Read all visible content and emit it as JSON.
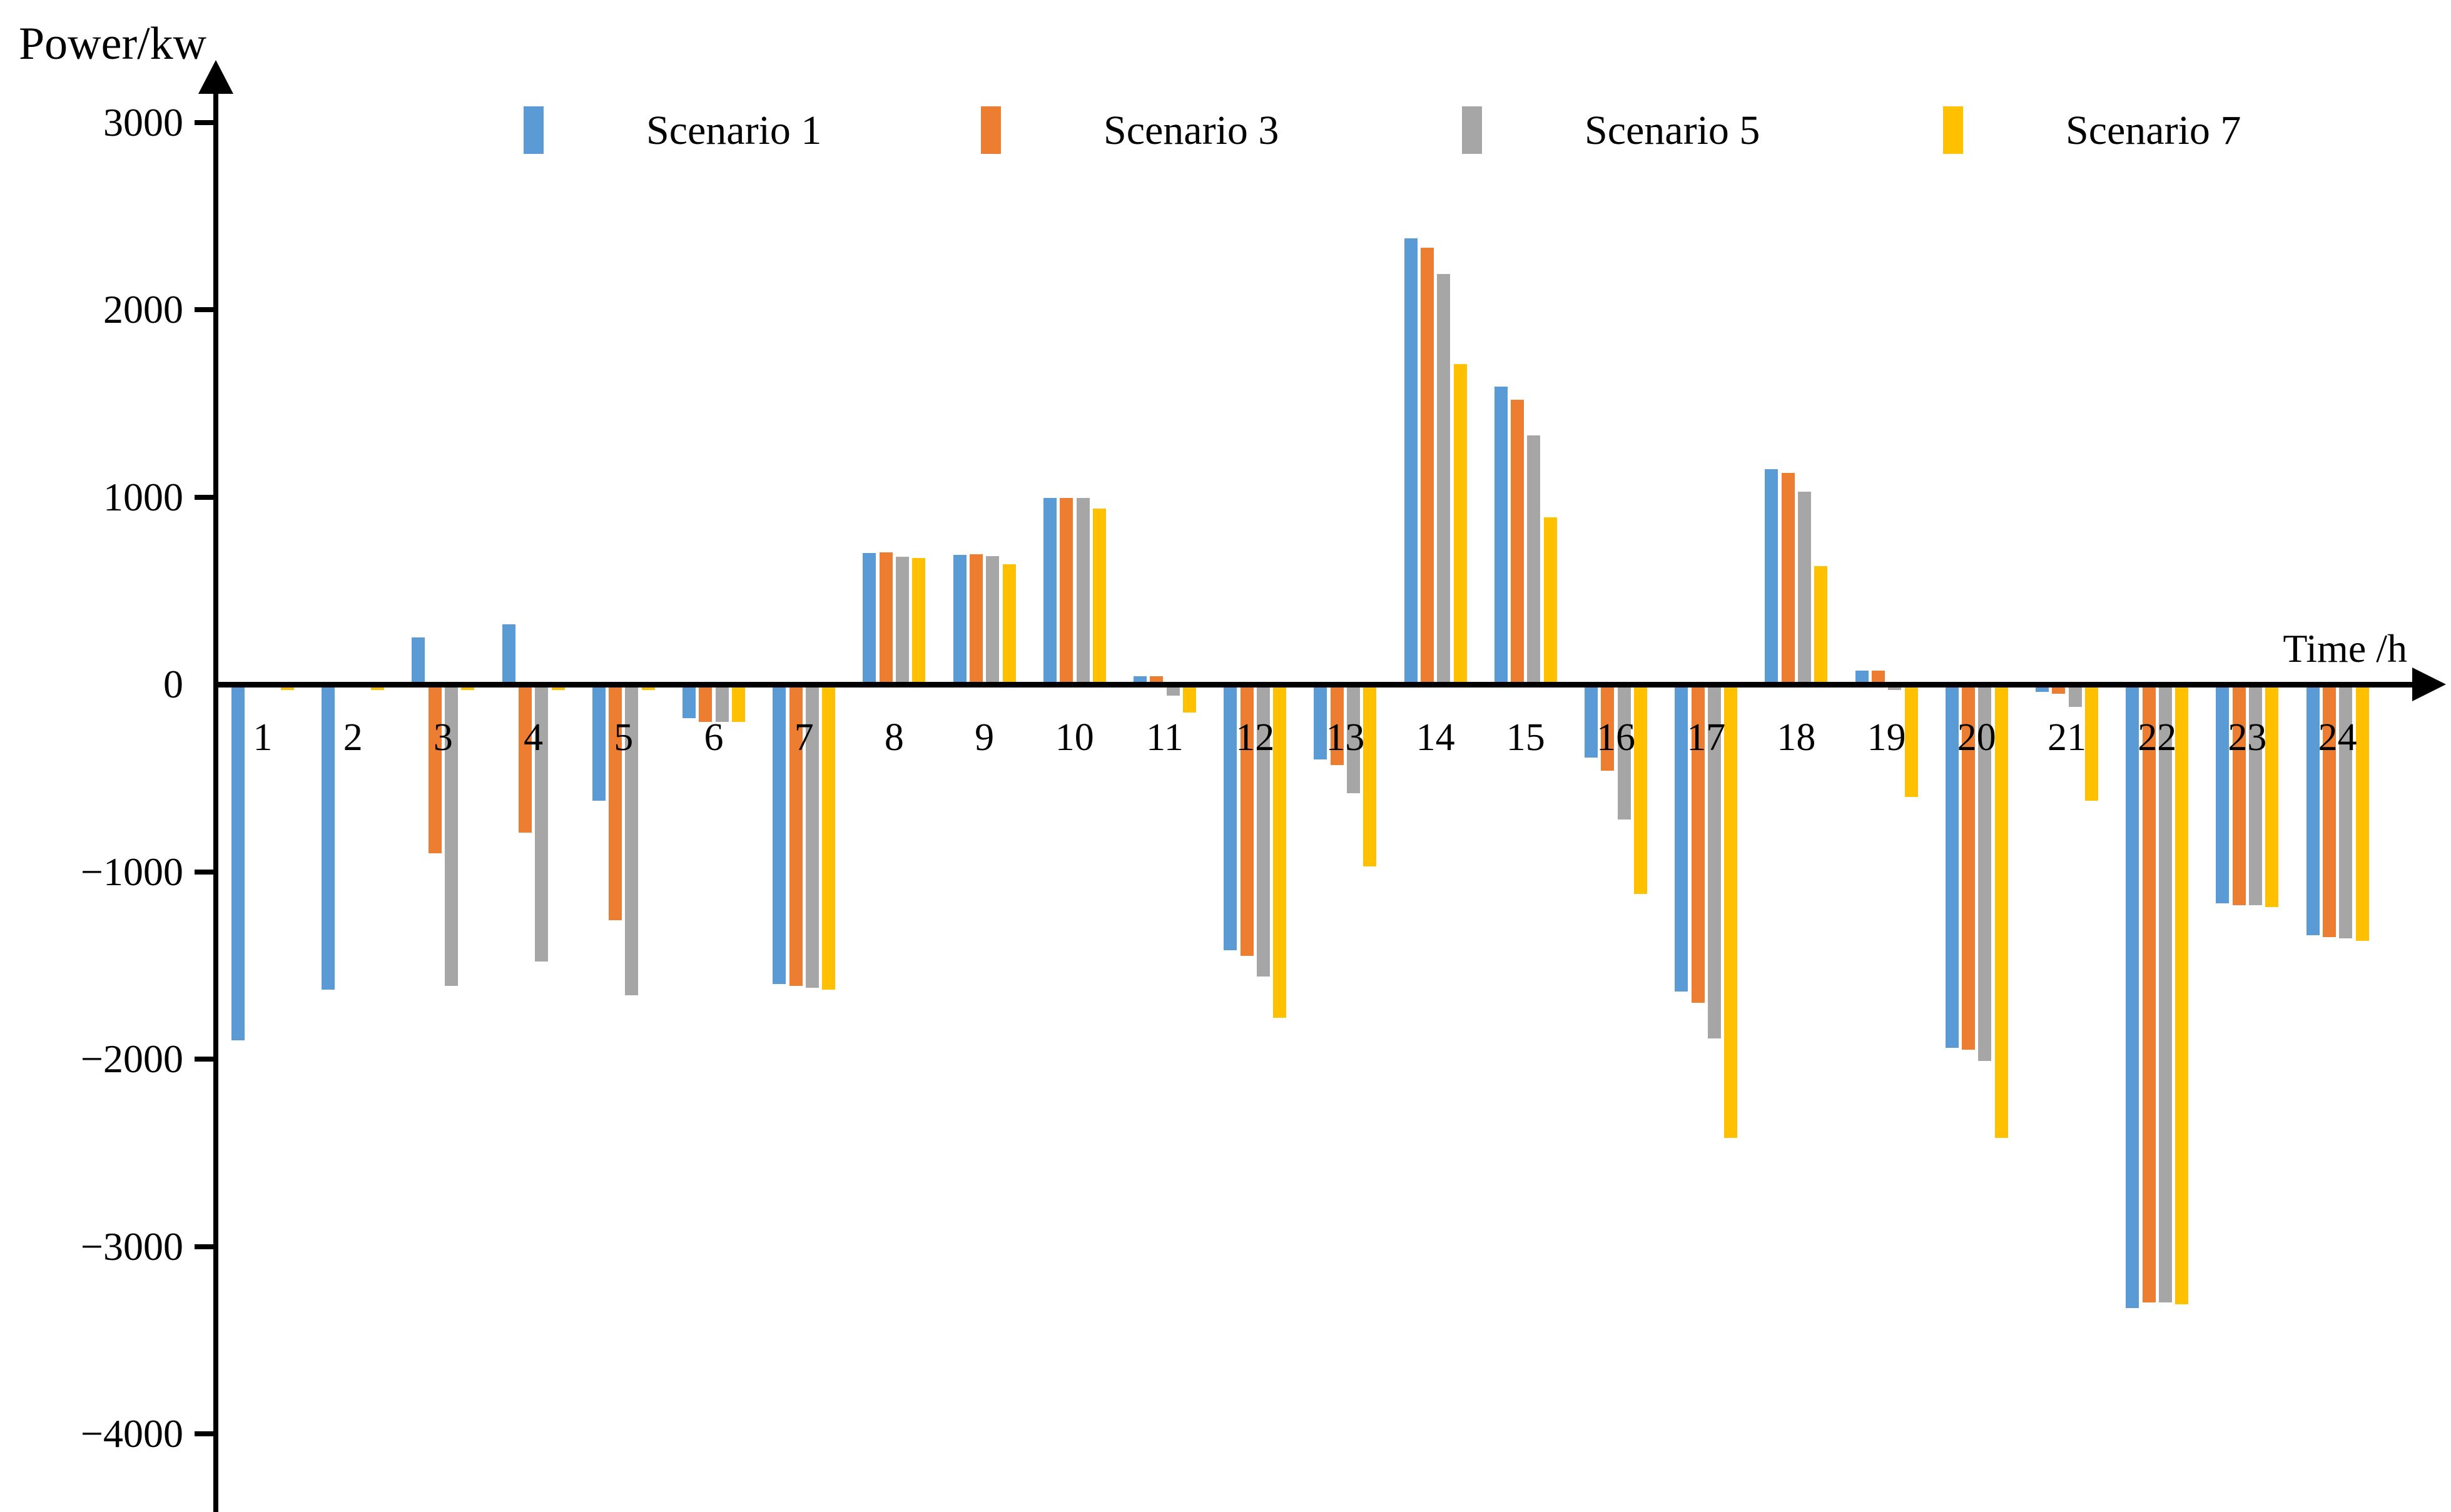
{
  "chart": {
    "y_axis_title": "Power/kw",
    "x_axis_title": "Time /h",
    "y_ticks": [
      {
        "value": 3000,
        "label": "3000"
      },
      {
        "value": 2000,
        "label": "2000"
      },
      {
        "value": 1000,
        "label": "1000"
      },
      {
        "value": 0,
        "label": "0"
      },
      {
        "value": -1000,
        "label": "−1000"
      },
      {
        "value": -2000,
        "label": "−2000"
      },
      {
        "value": -3000,
        "label": "−3000"
      },
      {
        "value": -4000,
        "label": "−4000"
      }
    ]
  },
  "chart_data": {
    "type": "bar",
    "title": "",
    "xlabel": "Time /h",
    "ylabel": "Power/kw",
    "categories": [
      "1",
      "2",
      "3",
      "4",
      "5",
      "6",
      "7",
      "8",
      "9",
      "10",
      "11",
      "12",
      "13",
      "14",
      "15",
      "16",
      "17",
      "18",
      "19",
      "20",
      "21",
      "22",
      "23",
      "24"
    ],
    "ylim": [
      -4400,
      3300
    ],
    "grid": false,
    "legend_position": "top",
    "axis_color": "#000000",
    "series": [
      {
        "name": "Scenario 1",
        "color": "#5B9BD5",
        "values": [
          -1900,
          -1630,
          250,
          320,
          -620,
          -180,
          -1600,
          700,
          690,
          995,
          45,
          -1420,
          -400,
          2380,
          1590,
          -390,
          -1640,
          1150,
          75,
          -1940,
          -40,
          -3330,
          -1170,
          -1340
        ]
      },
      {
        "name": "Scenario 3",
        "color": "#ED7D31",
        "values": [
          0,
          0,
          -900,
          -790,
          -1260,
          -200,
          -1610,
          705,
          695,
          995,
          45,
          -1450,
          -430,
          2330,
          1520,
          -460,
          -1700,
          1130,
          75,
          -1950,
          -50,
          -3300,
          -1180,
          -1350
        ]
      },
      {
        "name": "Scenario 5",
        "color": "#A6A6A6",
        "values": [
          0,
          0,
          -1610,
          -1480,
          -1660,
          -200,
          -1620,
          680,
          685,
          995,
          -60,
          -1560,
          -580,
          2190,
          1330,
          -720,
          -1890,
          1030,
          -30,
          -2010,
          -120,
          -3300,
          -1180,
          -1355
        ]
      },
      {
        "name": "Scenario 7",
        "color": "#FFC000",
        "values": [
          -30,
          -30,
          -30,
          -30,
          -30,
          -200,
          -1630,
          675,
          640,
          940,
          -150,
          -1780,
          -970,
          1710,
          890,
          -1120,
          -2420,
          630,
          -600,
          -2420,
          -620,
          -3310,
          -1190,
          -1370
        ]
      }
    ]
  }
}
